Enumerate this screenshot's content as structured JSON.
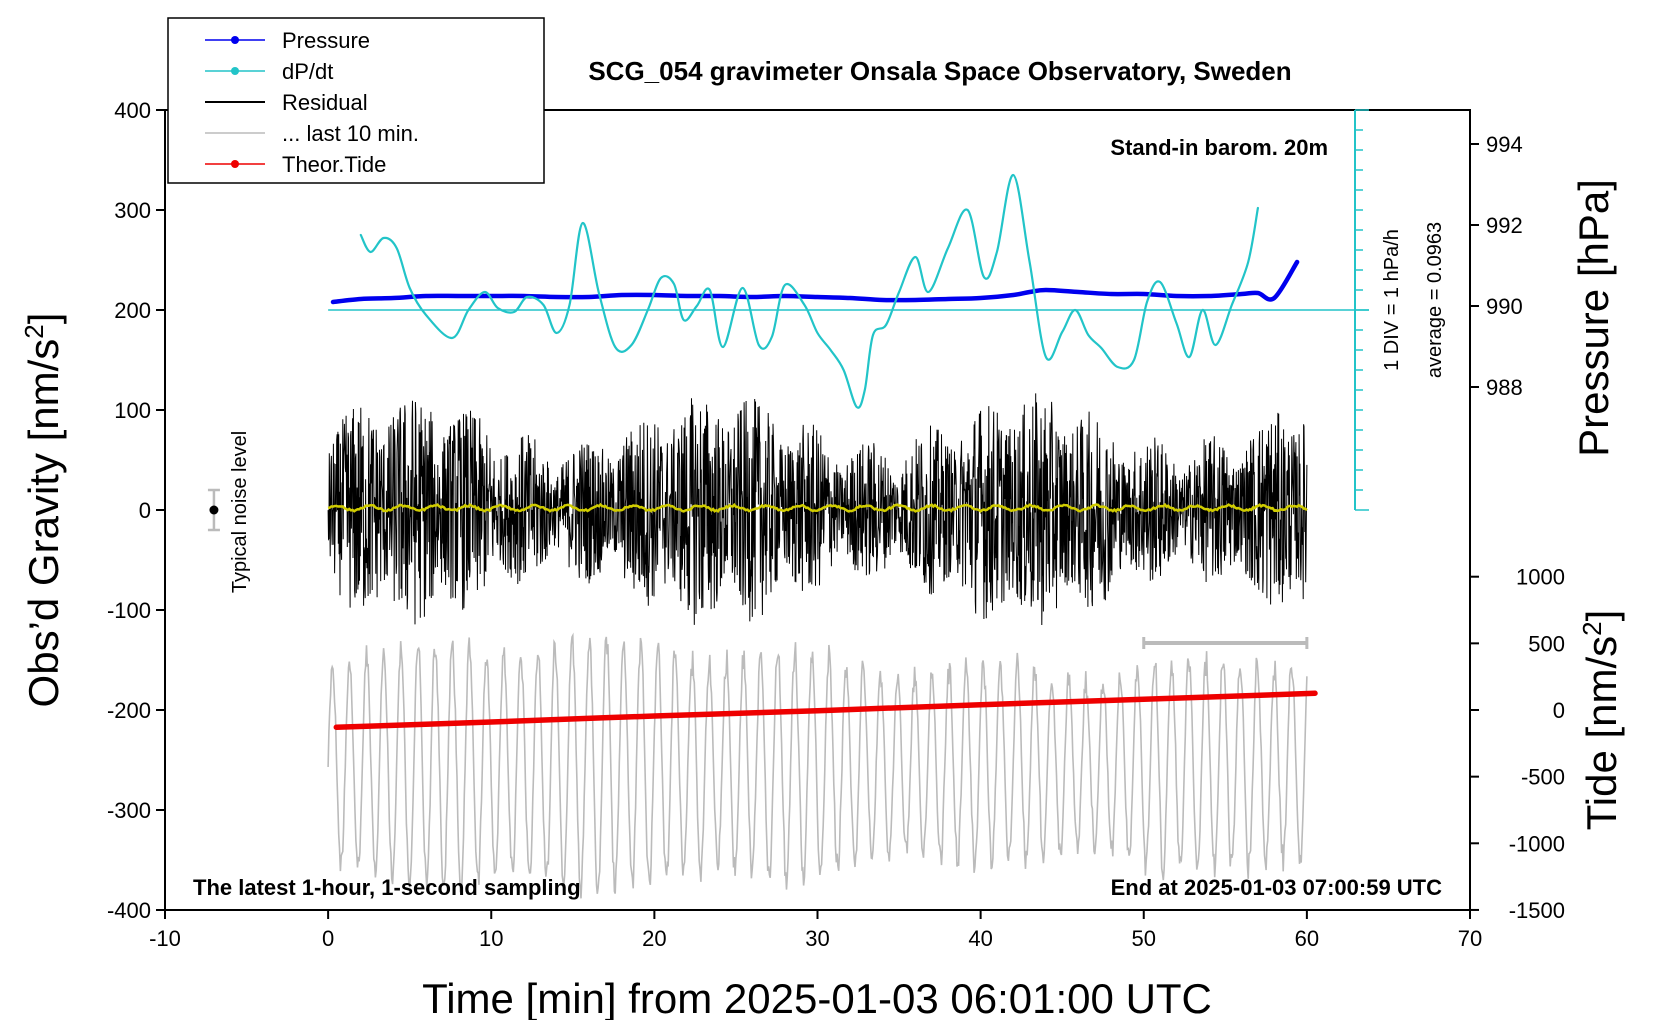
{
  "chart_data": {
    "type": "line",
    "title": "SCG_054 gravimeter Onsala Space Observatory, Sweden",
    "xlabel": "Time [min] from 2025-01-03 06:01:00 UTC",
    "ylabel_left_prefix": "Obs’d Gravity [nm/s",
    "ylabel_left_sup": "2",
    "ylabel_left_suffix": "]",
    "ylabel_right_pressure": "Pressure [hPa]",
    "ylabel_right_tide_prefix": "Tide [nm/s",
    "ylabel_right_tide_sup": "2",
    "ylabel_right_tide_suffix": "]",
    "xlim": [
      -10,
      70
    ],
    "ylim": [
      -400,
      400
    ],
    "x_ticks": [
      -10,
      0,
      10,
      20,
      30,
      40,
      50,
      60,
      70
    ],
    "x_tick_labels": [
      "-10",
      "0",
      "10",
      "20",
      "30",
      "40",
      "50",
      "60",
      "70"
    ],
    "y_ticks": [
      400,
      300,
      200,
      100,
      0,
      -100,
      -200,
      -300,
      -400
    ],
    "y_tick_labels": [
      "400",
      "300",
      "200",
      "100",
      "0",
      "-100",
      "-200",
      "-300",
      "-400"
    ],
    "pressure_axis": {
      "ticks": [
        994,
        992,
        990,
        988
      ],
      "tick_labels": [
        "994",
        "992",
        "990",
        "988"
      ]
    },
    "tide_axis": {
      "ticks": [
        1000,
        500,
        0,
        -500,
        -1000,
        -1500
      ],
      "tick_labels": [
        "1000",
        "500",
        "0",
        "-500",
        "-1000",
        "-1500"
      ]
    },
    "legend": [
      {
        "label": "Pressure",
        "color": "#0000ee",
        "marker": true
      },
      {
        "label": "dP/dt",
        "color": "#22c4c8",
        "marker": true
      },
      {
        "label": "Residual",
        "color": "#000000",
        "marker": false
      },
      {
        "label": "... last 10 min.",
        "color": "#bbbbbb",
        "marker": false
      },
      {
        "label": "Theor.Tide",
        "color": "#ee0000",
        "marker": true
      }
    ],
    "annotations": {
      "stand_in": "Stand-in barom. 20m",
      "dpdt_div": "1 DIV = 1 hPa/h",
      "dpdt_avg": "average = 0.0963",
      "noise": "Typical noise level",
      "latest": "The latest 1-hour, 1-second sampling",
      "end": "End at 2025-01-03 07:00:59 UTC"
    },
    "noise_bar": {
      "x": -7,
      "center": 0,
      "half_range": 20
    },
    "last10_range": [
      50,
      60
    ],
    "series": [
      {
        "name": "Pressure",
        "axis": "gravity-scale",
        "color": "#0000ee",
        "x": [
          0.3,
          2,
          4,
          6,
          8,
          10,
          12,
          14,
          16,
          18,
          20,
          22,
          24,
          26,
          28,
          30,
          32,
          34,
          36,
          38,
          40,
          42,
          43,
          44,
          46,
          48,
          50,
          52,
          54,
          56,
          57,
          58,
          59.4
        ],
        "y": [
          208,
          211,
          212,
          214,
          214,
          214,
          214,
          213,
          213,
          215,
          215,
          214,
          214,
          213,
          214,
          213,
          212,
          210,
          210,
          211,
          212,
          215,
          218,
          220,
          218,
          216,
          216,
          214,
          214,
          216,
          217,
          212,
          248
        ]
      },
      {
        "name": "dP/dt",
        "axis": "gravity-scale",
        "color": "#22c4c8",
        "x": [
          2,
          2.6,
          3.4,
          4.2,
          5,
          6,
          7.6,
          8.6,
          9.6,
          10.4,
          11.4,
          12.2,
          13.2,
          14,
          14.8,
          15.6,
          16.6,
          17.6,
          18.6,
          19.6,
          20.4,
          21.2,
          21.8,
          22.6,
          23.4,
          24.2,
          25.4,
          26.4,
          27.2,
          28,
          29.2,
          30,
          30.8,
          31.6,
          32.4,
          32.9,
          33.4,
          34.2,
          35,
          36,
          36.8,
          38,
          39.2,
          40.2,
          41,
          42,
          43,
          44,
          45,
          45.8,
          46.6,
          47.4,
          48.4,
          49.4,
          50.2,
          51,
          52,
          52.8,
          53.6,
          54.4,
          55.4,
          56.4,
          57
        ],
        "y": [
          275,
          258,
          272,
          262,
          222,
          195,
          172,
          200,
          218,
          202,
          198,
          213,
          205,
          177,
          205,
          287,
          217,
          163,
          165,
          200,
          232,
          226,
          190,
          204,
          220,
          163,
          222,
          165,
          173,
          225,
          205,
          177,
          160,
          140,
          103,
          120,
          175,
          185,
          218,
          253,
          218,
          262,
          300,
          233,
          258,
          335,
          248,
          153,
          178,
          200,
          175,
          162,
          143,
          150,
          208,
          228,
          187,
          153,
          200,
          165,
          205,
          248,
          302
        ]
      },
      {
        "name": "Theor.Tide",
        "axis": "tide",
        "color": "#ee0000",
        "x": [
          0.5,
          10,
          20,
          30,
          40,
          50,
          60.5
        ],
        "y": [
          -130,
          -90,
          -45,
          -5,
          40,
          80,
          125
        ]
      }
    ]
  }
}
